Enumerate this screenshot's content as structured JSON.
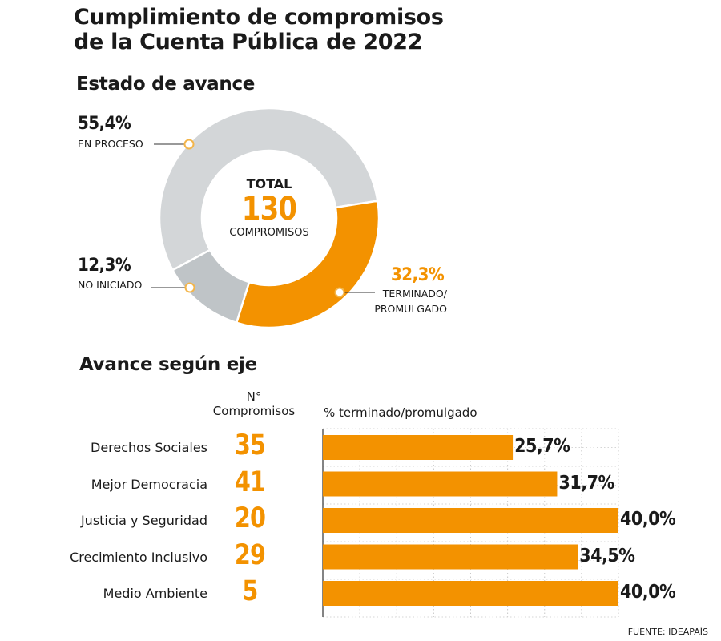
{
  "title_line1": "Cumplimiento de compromisos",
  "title_line2": "de la Cuenta Pública de 2022",
  "section1_title": "Estado de avance",
  "section2_title": "Avance según eje",
  "donut_center": {
    "label_top": "TOTAL",
    "value": "130",
    "label_bottom": "COMPROMISOS"
  },
  "colors": {
    "accent": "#f39200",
    "light_gray": "#d3d6d8",
    "mid_gray": "#bfc4c7"
  },
  "column_headers": {
    "count": "N°\nCompromisos",
    "percent": "% terminado/promulgado"
  },
  "source": "FUENTE: IDEAPAÍS",
  "chart_data": [
    {
      "type": "pie",
      "title": "Estado de avance",
      "total": 130,
      "slices": [
        {
          "label": "EN PROCESO",
          "value": 55.4,
          "display": "55,4%",
          "color": "#d3d6d8"
        },
        {
          "label": "TERMINADO/ PROMULGADO",
          "value": 32.3,
          "display": "32,3%",
          "color": "#f39200"
        },
        {
          "label": "NO INICIADO",
          "value": 12.3,
          "display": "12,3%",
          "color": "#bfc4c7"
        }
      ]
    },
    {
      "type": "bar",
      "title": "Avance según eje",
      "xlabel": "% terminado/promulgado",
      "categories": [
        "Derechos Sociales",
        "Mejor Democracia",
        "Justicia y Seguridad",
        "Crecimiento Inclusivo",
        "Medio Ambiente"
      ],
      "counts": [
        35,
        41,
        20,
        29,
        5
      ],
      "values": [
        25.7,
        31.7,
        40.0,
        34.5,
        40.0
      ],
      "value_labels": [
        "25,7%",
        "31,7%",
        "40,0%",
        "34,5%",
        "40,0%"
      ],
      "xlim": [
        0,
        40
      ],
      "grid": true
    }
  ]
}
